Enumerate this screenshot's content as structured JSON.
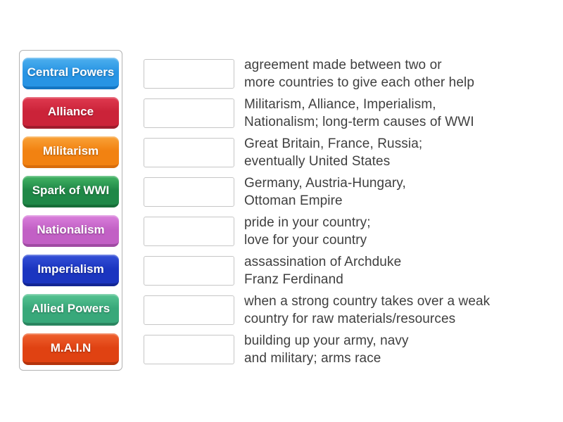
{
  "activity": {
    "type_label": "match-up",
    "background_color": "#ffffff",
    "definition_text_color": "#3f3f3f"
  },
  "terms_panel": {
    "tiles": [
      {
        "label": "Central Powers",
        "color_top": "#4fb0ee",
        "color_body": "#2794e4",
        "color_shadow": "#1476c3"
      },
      {
        "label": "Alliance",
        "color_top": "#e03a50",
        "color_body": "#cb2339",
        "color_shadow": "#a01c2d"
      },
      {
        "label": "Militarism",
        "color_top": "#f9a238",
        "color_body": "#f28211",
        "color_shadow": "#d86d0c"
      },
      {
        "label": "Spark of WWI",
        "color_top": "#43b465",
        "color_body": "#1f8847",
        "color_shadow": "#176e38"
      },
      {
        "label": "Nationalism",
        "color_top": "#da80dc",
        "color_body": "#c260c5",
        "color_shadow": "#a04ba3"
      },
      {
        "label": "Imperialism",
        "color_top": "#3551d8",
        "color_body": "#1b35c0",
        "color_shadow": "#122694"
      },
      {
        "label": "Allied Powers",
        "color_top": "#57c493",
        "color_body": "#38a87a",
        "color_shadow": "#2a8560"
      },
      {
        "label": "M.A.I.N",
        "color_top": "#ef6230",
        "color_body": "#e04212",
        "color_shadow": "#b5330c"
      }
    ]
  },
  "match_rows": [
    {
      "lines": [
        "agreement made between two or",
        "more countries to give each other help"
      ]
    },
    {
      "lines": [
        "Militarism, Alliance, Imperialism,",
        "Nationalism; long-term causes of WWI"
      ]
    },
    {
      "lines": [
        "Great Britain, France, Russia;",
        "eventually United States"
      ]
    },
    {
      "lines": [
        "Germany, Austria-Hungary,",
        "Ottoman Empire"
      ]
    },
    {
      "lines": [
        "pride in your country;",
        "love for your country"
      ]
    },
    {
      "lines": [
        "assassination of Archduke",
        "Franz Ferdinand"
      ]
    },
    {
      "lines": [
        "when a strong country takes over a weak",
        "country for raw materials/resources"
      ]
    },
    {
      "lines": [
        "building up your army, navy",
        "and military; arms race"
      ]
    }
  ]
}
